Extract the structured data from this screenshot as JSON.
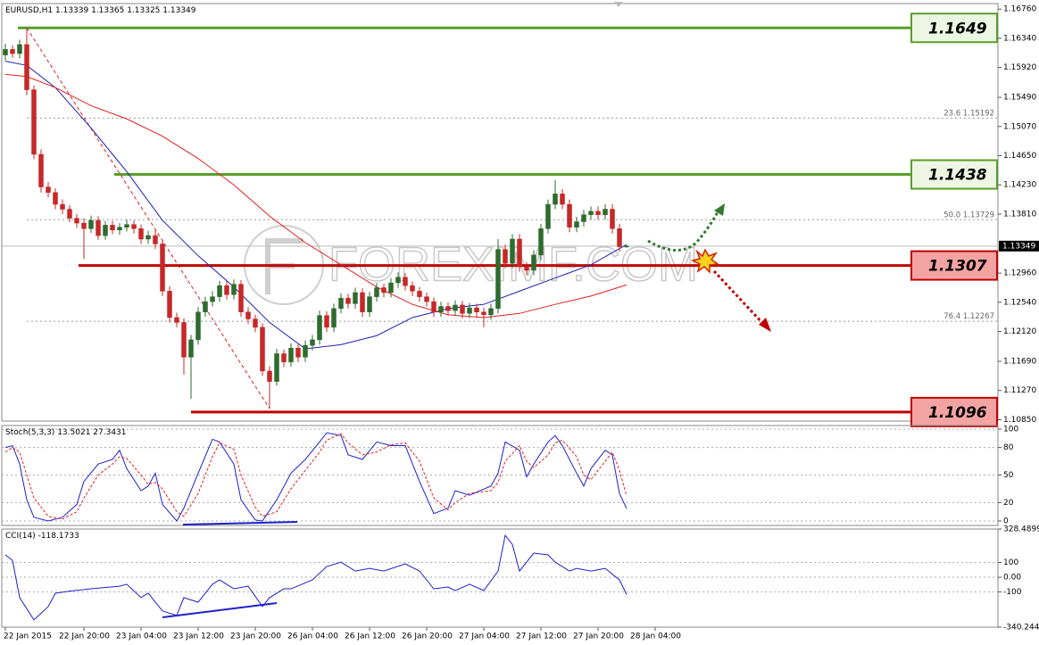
{
  "watermark": "FOREXIMF.COM",
  "chart_data": [
    {
      "type": "candlestick",
      "symbol": "EURUSD,H1",
      "up_color": "#2e6b2e",
      "down_color": "#c62828",
      "xlim": [
        -0.5,
        139
      ],
      "xticks": [
        {
          "value": 0,
          "label": "22 Jan 2015"
        },
        {
          "value": 11,
          "label": "22 Jan 20:00"
        },
        {
          "value": 19,
          "label": "23 Jan 04:00"
        },
        {
          "value": 27,
          "label": "23 Jan 12:00"
        },
        {
          "value": 35,
          "label": "23 Jan 20:00"
        },
        {
          "value": 43,
          "label": "26 Jan 04:00"
        },
        {
          "value": 51,
          "label": "26 Jan 12:00"
        },
        {
          "value": 59,
          "label": "26 Jan 20:00"
        },
        {
          "value": 67,
          "label": "27 Jan 04:00"
        },
        {
          "value": 75,
          "label": "27 Jan 12:00"
        },
        {
          "value": 83,
          "label": "27 Jan 20:00"
        },
        {
          "value": 91,
          "label": "28 Jan 04:00"
        }
      ],
      "ylim": [
        1.1083,
        1.1684
      ],
      "yticks": [
        {
          "value": 1.1676,
          "label": "1.16760"
        },
        {
          "value": 1.1634,
          "label": "1.16340"
        },
        {
          "value": 1.1592,
          "label": "1.15920"
        },
        {
          "value": 1.1549,
          "label": "1.15490"
        },
        {
          "value": 1.1507,
          "label": "1.15070"
        },
        {
          "value": 1.1465,
          "label": "1.14650"
        },
        {
          "value": 1.1423,
          "label": "1.14230"
        },
        {
          "value": 1.1381,
          "label": "1.13810"
        },
        {
          "value": 1.1296,
          "label": "1.12960"
        },
        {
          "value": 1.1254,
          "label": "1.12540"
        },
        {
          "value": 1.1212,
          "label": "1.12120"
        },
        {
          "value": 1.1169,
          "label": "1.11690"
        },
        {
          "value": 1.1127,
          "label": "1.11270"
        },
        {
          "value": 1.1085,
          "label": "1.10850"
        }
      ],
      "open": [
        1.161,
        1.1618,
        1.1612,
        1.1625,
        1.156,
        1.1467,
        1.142,
        1.1412,
        1.1395,
        1.1388,
        1.1375,
        1.1368,
        1.136,
        1.1372,
        1.135,
        1.1365,
        1.1358,
        1.1362,
        1.1366,
        1.136,
        1.1345,
        1.135,
        1.1338,
        1.127,
        1.1232,
        1.1225,
        1.1175,
        1.12,
        1.124,
        1.1255,
        1.1262,
        1.1278,
        1.1265,
        1.128,
        1.124,
        1.123,
        1.1218,
        1.1155,
        1.114,
        1.118,
        1.1168,
        1.1188,
        1.1175,
        1.1192,
        1.12,
        1.1235,
        1.1218,
        1.1245,
        1.126,
        1.1252,
        1.1268,
        1.124,
        1.1262,
        1.1275,
        1.1268,
        1.1282,
        1.129,
        1.1278,
        1.127,
        1.1262,
        1.1255,
        1.124,
        1.1248,
        1.1242,
        1.125,
        1.1238,
        1.1246,
        1.124,
        1.1236,
        1.1245,
        1.133,
        1.131,
        1.1345,
        1.1305,
        1.13,
        1.1322,
        1.136,
        1.1395,
        1.141,
        1.1395,
        1.1362,
        1.137,
        1.138,
        1.1385,
        1.138,
        1.1388,
        1.136,
        1.13339
      ],
      "high": [
        1.1626,
        1.1624,
        1.1632,
        1.1649,
        1.1566,
        1.1474,
        1.1427,
        1.1418,
        1.1402,
        1.1394,
        1.1381,
        1.1375,
        1.1379,
        1.1378,
        1.1371,
        1.1371,
        1.1368,
        1.1373,
        1.1372,
        1.1366,
        1.1357,
        1.1357,
        1.1344,
        1.1277,
        1.1239,
        1.1231,
        1.1207,
        1.1247,
        1.1262,
        1.127,
        1.1285,
        1.1285,
        1.1287,
        1.1286,
        1.1247,
        1.1236,
        1.1224,
        1.1162,
        1.1187,
        1.1186,
        1.1195,
        1.1194,
        1.1199,
        1.1207,
        1.1242,
        1.1241,
        1.1252,
        1.1267,
        1.1266,
        1.1275,
        1.1274,
        1.1269,
        1.1282,
        1.1281,
        1.1289,
        1.1297,
        1.1296,
        1.1284,
        1.1276,
        1.1268,
        1.1261,
        1.1255,
        1.1254,
        1.1257,
        1.1256,
        1.1253,
        1.1252,
        1.1246,
        1.1252,
        1.1345,
        1.1337,
        1.1352,
        1.1352,
        1.1312,
        1.1329,
        1.1367,
        1.1402,
        1.143,
        1.1417,
        1.1402,
        1.1377,
        1.1387,
        1.1392,
        1.1392,
        1.1395,
        1.1395,
        1.1367,
        1.13365
      ],
      "low": [
        1.1602,
        1.1606,
        1.1605,
        1.1552,
        1.146,
        1.1412,
        1.1405,
        1.1388,
        1.1381,
        1.1369,
        1.1361,
        1.1316,
        1.1354,
        1.1344,
        1.1344,
        1.1352,
        1.1351,
        1.1356,
        1.1353,
        1.1338,
        1.1338,
        1.1331,
        1.1263,
        1.1225,
        1.1218,
        1.115,
        1.1115,
        1.1193,
        1.1233,
        1.1248,
        1.1255,
        1.1258,
        1.1258,
        1.1233,
        1.1223,
        1.1211,
        1.1148,
        1.1101,
        1.1134,
        1.1161,
        1.1161,
        1.1168,
        1.1168,
        1.1185,
        1.1193,
        1.1211,
        1.1211,
        1.1238,
        1.1245,
        1.1245,
        1.1233,
        1.1233,
        1.1255,
        1.1261,
        1.1261,
        1.1275,
        1.1271,
        1.1263,
        1.1255,
        1.1248,
        1.1233,
        1.1233,
        1.1235,
        1.1235,
        1.1231,
        1.1231,
        1.1233,
        1.1218,
        1.1229,
        1.1238,
        1.1303,
        1.1303,
        1.1298,
        1.1293,
        1.1293,
        1.1315,
        1.1353,
        1.1388,
        1.1388,
        1.1355,
        1.1355,
        1.1363,
        1.1373,
        1.1373,
        1.1373,
        1.1353,
        1.1327,
        1.13325
      ],
      "close": [
        1.1618,
        1.1612,
        1.1625,
        1.156,
        1.1467,
        1.142,
        1.1412,
        1.1395,
        1.1388,
        1.1375,
        1.1368,
        1.136,
        1.1372,
        1.135,
        1.1365,
        1.1358,
        1.1362,
        1.1366,
        1.136,
        1.1345,
        1.135,
        1.1338,
        1.127,
        1.1232,
        1.1225,
        1.1175,
        1.12,
        1.124,
        1.1255,
        1.1262,
        1.1278,
        1.1265,
        1.128,
        1.124,
        1.123,
        1.1218,
        1.1155,
        1.114,
        1.118,
        1.1168,
        1.1188,
        1.1175,
        1.1192,
        1.12,
        1.1235,
        1.1218,
        1.1245,
        1.126,
        1.1252,
        1.1268,
        1.124,
        1.1262,
        1.1275,
        1.1268,
        1.1282,
        1.129,
        1.1278,
        1.127,
        1.1262,
        1.1255,
        1.124,
        1.1248,
        1.1242,
        1.125,
        1.1238,
        1.1246,
        1.124,
        1.1236,
        1.1245,
        1.133,
        1.131,
        1.1345,
        1.1305,
        1.13,
        1.1322,
        1.136,
        1.1395,
        1.141,
        1.1395,
        1.1362,
        1.137,
        1.138,
        1.1385,
        1.138,
        1.1388,
        1.136,
        1.1334,
        1.13349
      ],
      "series": [
        {
          "color": "#1f1fb4",
          "x": [
            0,
            3,
            7,
            12,
            17,
            22,
            27,
            32,
            37,
            42,
            47,
            52,
            57,
            62,
            67,
            72,
            77,
            82,
            87
          ],
          "values": [
            1.1601,
            1.1595,
            1.1563,
            1.1505,
            1.1442,
            1.1372,
            1.1321,
            1.1276,
            1.1225,
            1.1187,
            1.1193,
            1.1206,
            1.1232,
            1.1245,
            1.1251,
            1.127,
            1.1289,
            1.1308,
            1.1337
          ]
        },
        {
          "color": "#e02020",
          "x": [
            0,
            3,
            7,
            12,
            17,
            22,
            27,
            32,
            37,
            42,
            47,
            52,
            57,
            62,
            67,
            72,
            77,
            82,
            87
          ],
          "values": [
            1.1582,
            1.1579,
            1.1563,
            1.1537,
            1.1518,
            1.1493,
            1.1461,
            1.1423,
            1.1378,
            1.134,
            1.1308,
            1.1276,
            1.1251,
            1.1236,
            1.1232,
            1.1238,
            1.1251,
            1.1263,
            1.1279
          ]
        }
      ],
      "levels": [
        {
          "value": 1.1649,
          "color": "#5a9e2c"
        },
        {
          "value": 1.1438,
          "color": "#5a9e2c"
        },
        {
          "value": 1.1307,
          "color": "#c00000"
        },
        {
          "value": 1.1096,
          "color": "#c00000"
        }
      ],
      "fibo": [
        {
          "level": "23.6",
          "value": 1.15192
        },
        {
          "level": "50.0",
          "value": 1.13729
        },
        {
          "level": "76.4",
          "value": 1.12267
        }
      ]
    },
    {
      "type": "line",
      "title": "Stoch(5,3,3)",
      "ylim": [
        -4.9,
        103.9
      ],
      "yticks": [
        100,
        80,
        50,
        20,
        0
      ],
      "grid": true,
      "series": [
        {
          "color": "#1f1fcc",
          "x": [
            0,
            1,
            2,
            3,
            4,
            6,
            8,
            10,
            11,
            13,
            15,
            16,
            17,
            19,
            20,
            21,
            22,
            24,
            25,
            27,
            29,
            30,
            32,
            33,
            35,
            36,
            38,
            40,
            42,
            44,
            45,
            47,
            48,
            50,
            52,
            54,
            56,
            58,
            60,
            62,
            63,
            65,
            68,
            69,
            70,
            72,
            73,
            74,
            76,
            77,
            78,
            80,
            81,
            82,
            84,
            85,
            86,
            87
          ],
          "values": [
            80,
            82,
            62,
            23,
            4,
            0,
            4,
            18,
            43,
            62,
            67,
            77,
            57,
            33,
            38,
            52,
            18,
            0,
            14,
            52,
            89,
            86,
            62,
            23,
            1,
            0,
            23,
            52,
            67,
            86,
            96,
            93,
            72,
            67,
            86,
            82,
            82,
            43,
            8,
            14,
            33,
            28,
            38,
            52,
            86,
            77,
            48,
            62,
            86,
            93,
            82,
            52,
            38,
            57,
            77,
            72,
            30,
            13.5021
          ]
        },
        {
          "color": "#e02020",
          "dash": true,
          "x": [
            0,
            1,
            2,
            3,
            4,
            6,
            8,
            10,
            11,
            13,
            15,
            16,
            17,
            19,
            20,
            21,
            22,
            24,
            25,
            27,
            29,
            30,
            32,
            33,
            35,
            36,
            38,
            40,
            42,
            44,
            45,
            47,
            48,
            50,
            52,
            54,
            56,
            58,
            60,
            62,
            63,
            65,
            68,
            69,
            70,
            72,
            73,
            74,
            76,
            77,
            78,
            80,
            81,
            82,
            84,
            85,
            86,
            87
          ],
          "values": [
            75,
            80,
            75,
            50,
            25,
            5,
            2,
            10,
            25,
            50,
            62,
            70,
            68,
            50,
            40,
            42,
            35,
            10,
            5,
            30,
            70,
            85,
            78,
            50,
            15,
            5,
            10,
            35,
            55,
            75,
            88,
            95,
            85,
            72,
            75,
            83,
            85,
            65,
            25,
            12,
            20,
            30,
            33,
            42,
            65,
            82,
            65,
            58,
            72,
            85,
            88,
            70,
            50,
            45,
            65,
            75,
            55,
            27.3431
          ]
        }
      ]
    },
    {
      "type": "line",
      "title": "CCI(14)",
      "ylim": [
        -340.2442,
        328.4899
      ],
      "yticks": [
        328.4899,
        100,
        {
          "value": 0,
          "label": "0.00"
        },
        -100,
        -340.2442
      ],
      "grid": true,
      "series": [
        {
          "color": "#1f1fcc",
          "x": [
            0,
            1,
            2,
            4,
            6,
            7,
            9,
            12,
            16,
            17,
            19,
            20,
            22,
            24,
            25,
            27,
            29,
            30,
            32,
            34,
            36,
            37,
            39,
            40,
            43,
            45,
            47,
            49,
            51,
            53,
            56,
            58,
            60,
            62,
            63,
            65,
            67,
            69,
            70,
            71,
            72,
            74,
            76,
            77,
            79,
            80,
            82,
            84,
            86,
            87
          ],
          "values": [
            152,
            115,
            -139,
            -291,
            -200,
            -109,
            -95,
            -79,
            -61,
            -48,
            -139,
            -109,
            -230,
            -260,
            -139,
            -170,
            -48,
            -18,
            -79,
            -61,
            -200,
            -139,
            -79,
            -79,
            -18,
            73,
            103,
            42,
            60,
            42,
            91,
            42,
            -79,
            -67,
            -91,
            -48,
            -91,
            42,
            285,
            224,
            42,
            164,
            152,
            103,
            42,
            60,
            42,
            60,
            -18,
            -118.1733
          ]
        }
      ]
    }
  ]
}
